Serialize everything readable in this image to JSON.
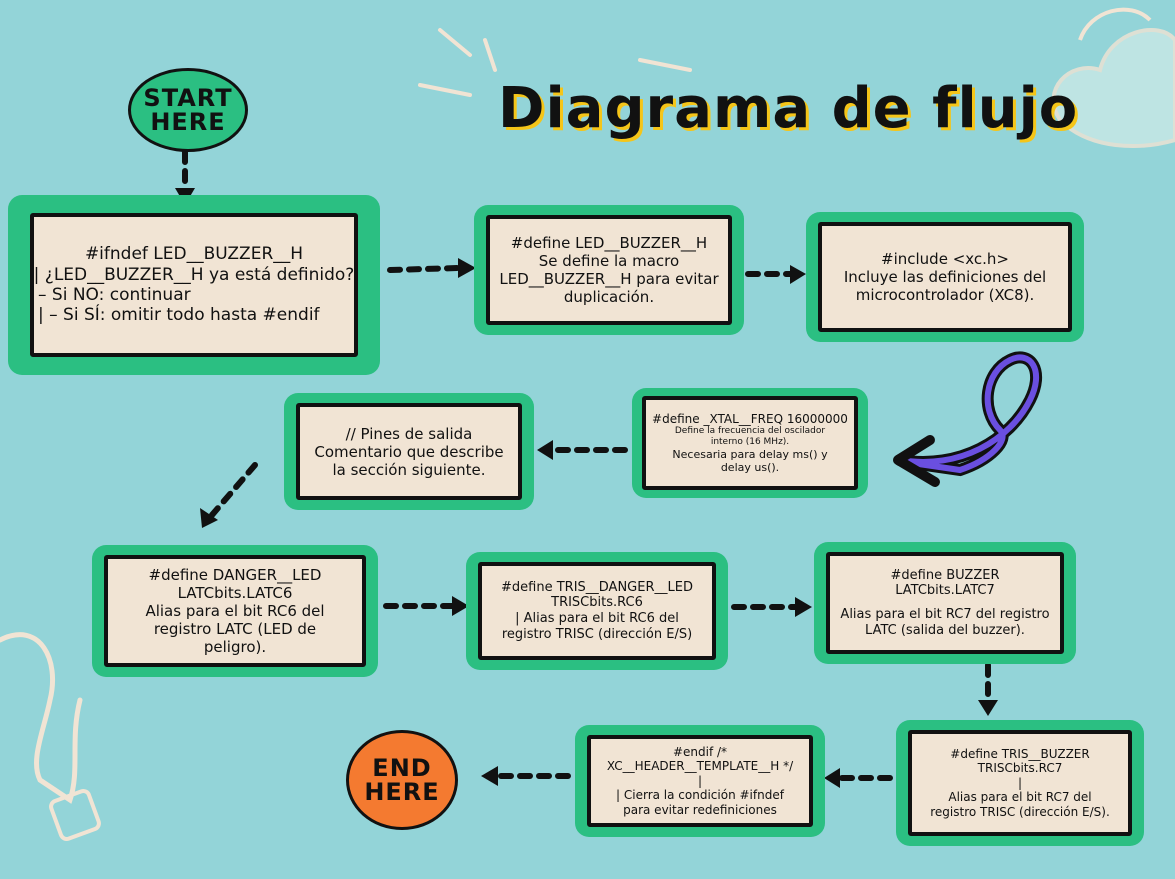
{
  "title": "Diagrama de flujo",
  "start_badge": {
    "line1": "START",
    "line2": "HERE"
  },
  "end_badge": {
    "line1": "END",
    "line2": "HERE"
  },
  "boxes": [
    {
      "lines": [
        "#ifndef LED__BUZZER__H",
        "| ¿LED__BUZZER__H ya está definido?",
        "– Si NO: continuar",
        "|   – Si SÍ: omitir todo hasta #endif"
      ]
    },
    {
      "lines": [
        "#define LED__BUZZER__H",
        "Se define la macro",
        "LED__BUZZER__H para evitar",
        "duplicación."
      ]
    },
    {
      "lines": [
        "#include <xc.h>",
        "Incluye las definiciones del",
        "microcontrolador (XC8)."
      ]
    },
    {
      "lines": [
        "#define _XTAL__FREQ 16000000",
        "Define la frecuencia del oscilador",
        "interno (16 MHz).",
        "Necesaria para delay ms() y",
        "delay us()."
      ]
    },
    {
      "lines": [
        "// Pines de salida",
        "Comentario que describe",
        "la sección siguiente."
      ]
    },
    {
      "lines": [
        "#define DANGER__LED",
        "LATCbits.LATC6",
        "Alias para el bit RC6 del",
        "registro LATC (LED de",
        "peligro)."
      ]
    },
    {
      "lines": [
        "#define TRIS__DANGER__LED",
        "TRISCbits.RC6",
        "| Alias para el bit RC6 del",
        "registro TRISC (dirección E/S)"
      ]
    },
    {
      "lines": [
        "#define BUZZER",
        "LATCbits.LATC7",
        "",
        "Alias para el bit RC7 del registro",
        "LATC (salida del buzzer)."
      ]
    },
    {
      "lines": [
        "#define TRIS__BUZZER",
        "TRISCbits.RC7",
        "|",
        "Alias para el bit RC7 del",
        "registro TRISC (dirección E/S)."
      ]
    },
    {
      "lines": [
        "#endif  /*",
        "XC__HEADER__TEMPLATE__H */",
        "|",
        "|  Cierra la condición #ifndef",
        "para evitar redefiniciones"
      ]
    }
  ],
  "colors": {
    "background": "#93d4d8",
    "box_frame": "#2bbf82",
    "box_fill": "#f1e4d4",
    "start_badge": "#2bbf82",
    "end_badge": "#f47a30",
    "title_shadow": "#f5c518",
    "swirl_arrow": "#6a4fe0"
  }
}
